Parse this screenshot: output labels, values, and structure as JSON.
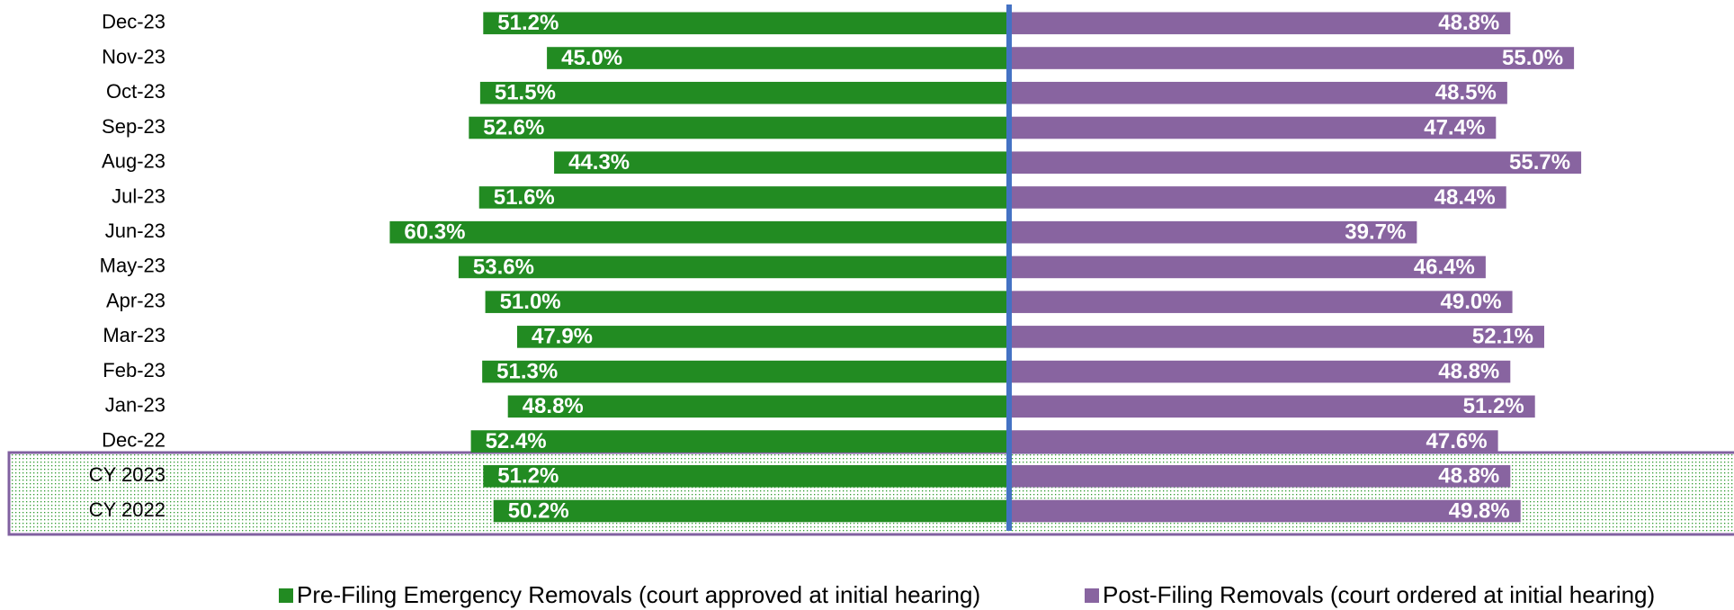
{
  "chart_data": {
    "type": "diverging-bar",
    "categories": [
      "Dec-23",
      "Nov-23",
      "Oct-23",
      "Sep-23",
      "Aug-23",
      "Jul-23",
      "Jun-23",
      "May-23",
      "Apr-23",
      "Mar-23",
      "Feb-23",
      "Jan-23",
      "Dec-22",
      "CY 2023",
      "CY 2022"
    ],
    "series": [
      {
        "name": "Pre-Filing Emergency Removals (court approved at initial hearing)",
        "color": "#228b22",
        "values": [
          51.2,
          45.0,
          51.5,
          52.6,
          44.3,
          51.6,
          60.3,
          53.6,
          51.0,
          47.9,
          51.3,
          48.8,
          52.4,
          51.2,
          50.2
        ],
        "value_labels": [
          "51.2%",
          "45.0%",
          "51.5%",
          "52.6%",
          "44.3%",
          "51.6%",
          "60.3%",
          "53.6%",
          "51.0%",
          "47.9%",
          "51.3%",
          "48.8%",
          "52.4%",
          "51.2%",
          "50.2%"
        ]
      },
      {
        "name": "Post-Filing Removals (court ordered at initial hearing)",
        "color": "#8864a0",
        "values": [
          48.8,
          55.0,
          48.5,
          47.4,
          55.7,
          48.4,
          39.7,
          46.4,
          49.0,
          52.1,
          48.8,
          51.2,
          47.6,
          48.8,
          49.8
        ],
        "value_labels": [
          "48.8%",
          "55.0%",
          "48.5%",
          "47.4%",
          "55.7%",
          "48.4%",
          "39.7%",
          "46.4%",
          "49.0%",
          "52.1%",
          "48.8%",
          "51.2%",
          "47.6%",
          "48.8%",
          "49.8%"
        ]
      }
    ]
  }
}
